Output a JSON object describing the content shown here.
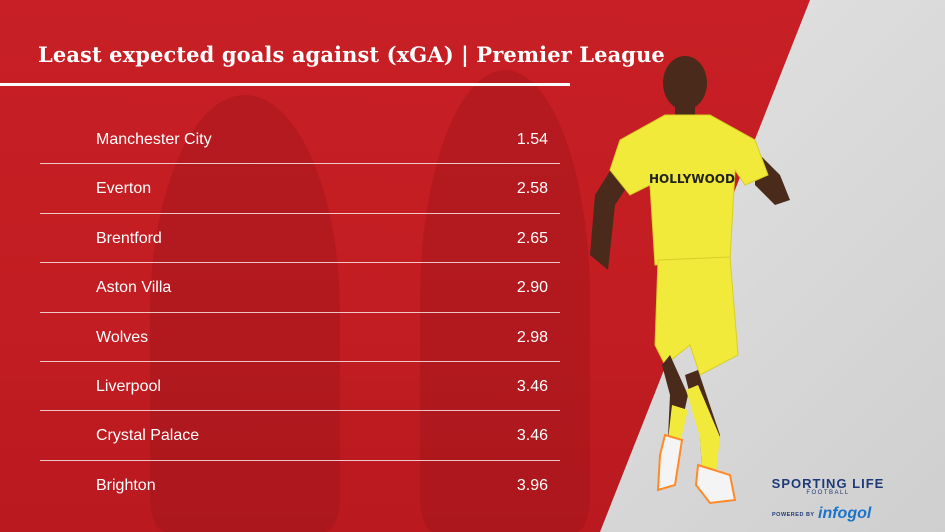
{
  "header": {
    "title": "Least expected goals against (xGA) | Premier League"
  },
  "chart_data": {
    "type": "table",
    "title": "Least expected goals against (xGA) | Premier League",
    "categories": [
      "Manchester City",
      "Everton",
      "Brentford",
      "Aston Villa",
      "Wolves",
      "Liverpool",
      "Crystal Palace",
      "Brighton"
    ],
    "values": [
      1.54,
      2.58,
      2.65,
      2.9,
      2.98,
      3.46,
      3.46,
      3.96
    ],
    "value_labels": [
      "1.54",
      "2.58",
      "2.65",
      "2.90",
      "2.98",
      "3.46",
      "3.46",
      "3.96"
    ]
  },
  "branding": {
    "primary": "SPORTING LIFE",
    "secondary": "FOOTBALL",
    "powered_by": "POWERED BY",
    "partner": "infogol"
  },
  "player_shirt_text": "HOLLYWOOD",
  "colors": {
    "background_red": "#c41e24",
    "text": "#ffffff",
    "shirt_yellow": "#f2ea3a",
    "brand_navy": "#1e3a78",
    "partner_blue": "#1b74c9"
  }
}
